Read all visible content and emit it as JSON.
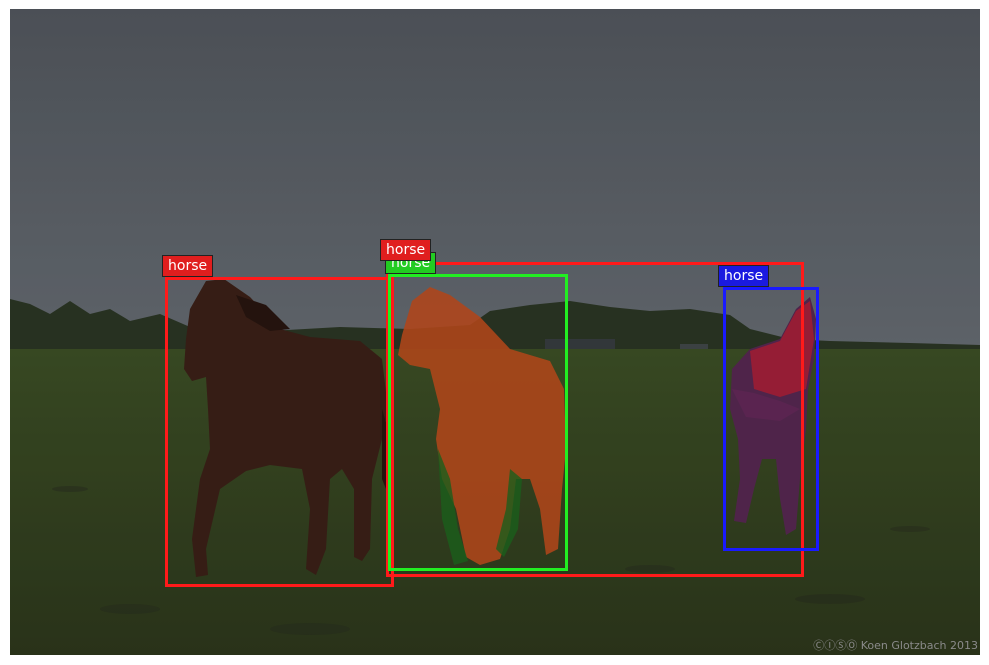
{
  "image": {
    "credit": "Koen Glotzbach 2013",
    "cc_icons": "ⒸⒾⓈⓄ",
    "sky_color": "#5c6168",
    "grass_color": "#3b4a22"
  },
  "detections": [
    {
      "label": "horse",
      "color": "#ff1a1a",
      "mask": false
    },
    {
      "label": "horse",
      "color": "#ff1a1a",
      "mask": false
    },
    {
      "label": "horse",
      "color": "#22ee22",
      "mask": true,
      "mask_color": "#c8501e"
    },
    {
      "label": "horse",
      "color": "#1a1aff",
      "mask": true,
      "mask_color": "#b8203a"
    }
  ]
}
